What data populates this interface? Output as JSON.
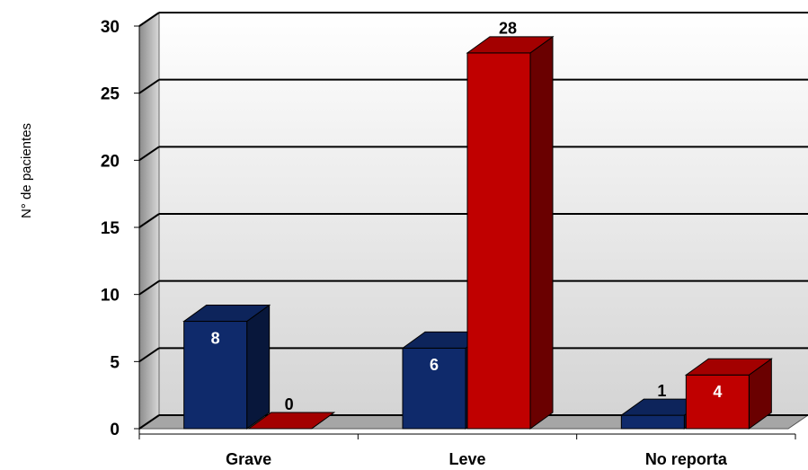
{
  "chart_data": {
    "type": "bar3d",
    "y_label": "N° de pacientes",
    "categories": [
      "Grave",
      "Leve",
      "No reporta"
    ],
    "series": [
      {
        "color": "#0f2a6b",
        "values": [
          8,
          6,
          1
        ]
      },
      {
        "color": "#c00000",
        "values": [
          0,
          28,
          4
        ]
      }
    ],
    "ylim": [
      0,
      30
    ],
    "yticks": [
      0,
      5,
      10,
      15,
      20,
      25,
      30
    ],
    "grid": true
  }
}
